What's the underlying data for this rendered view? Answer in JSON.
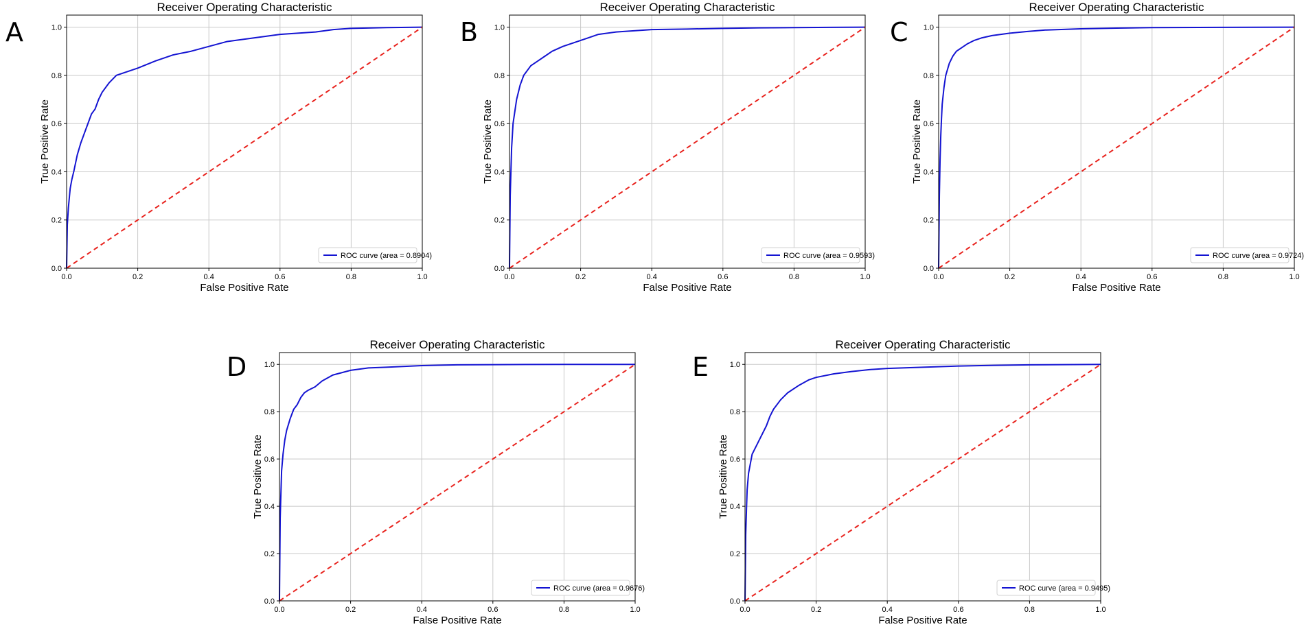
{
  "figure": {
    "panel_letters": [
      "A",
      "B",
      "C",
      "D",
      "E"
    ],
    "colors": {
      "roc_line": "#1414d2",
      "diagonal": "#e8231e",
      "grid": "#c8c8c8",
      "axes": "#000000"
    }
  },
  "chart_data": [
    {
      "type": "line",
      "title": "Receiver Operating Characteristic",
      "xlabel": "False Positive Rate",
      "ylabel": "True Positive Rate",
      "xlim": [
        0,
        1
      ],
      "ylim": [
        0,
        1.05
      ],
      "xticks": [
        "0.0",
        "0.2",
        "0.4",
        "0.6",
        "0.8",
        "1.0"
      ],
      "yticks": [
        "0.0",
        "0.2",
        "0.4",
        "0.6",
        "0.8",
        "1.0"
      ],
      "grid": true,
      "legend_position": "lower-right",
      "series": [
        {
          "name": "ROC curve (area = 0.8904)",
          "style": "solid",
          "x": [
            0,
            0.002,
            0.005,
            0.01,
            0.015,
            0.02,
            0.03,
            0.04,
            0.05,
            0.06,
            0.07,
            0.08,
            0.09,
            0.1,
            0.12,
            0.14,
            0.16,
            0.18,
            0.2,
            0.25,
            0.3,
            0.35,
            0.4,
            0.45,
            0.5,
            0.55,
            0.6,
            0.65,
            0.7,
            0.75,
            0.8,
            0.9,
            1.0
          ],
          "y": [
            0,
            0.18,
            0.25,
            0.33,
            0.37,
            0.4,
            0.47,
            0.52,
            0.56,
            0.6,
            0.64,
            0.66,
            0.7,
            0.73,
            0.77,
            0.8,
            0.81,
            0.82,
            0.83,
            0.86,
            0.885,
            0.9,
            0.92,
            0.94,
            0.95,
            0.96,
            0.97,
            0.975,
            0.98,
            0.99,
            0.995,
            0.998,
            1.0
          ]
        },
        {
          "style": "dashed",
          "x": [
            0,
            1
          ],
          "y": [
            0,
            1
          ]
        }
      ]
    },
    {
      "type": "line",
      "title": "Receiver Operating Characteristic",
      "xlabel": "False Positive Rate",
      "ylabel": "True Positive Rate",
      "xlim": [
        0,
        1
      ],
      "ylim": [
        0,
        1.05
      ],
      "xticks": [
        "0.0",
        "0.2",
        "0.4",
        "0.6",
        "0.8",
        "1.0"
      ],
      "yticks": [
        "0.0",
        "0.2",
        "0.4",
        "0.6",
        "0.8",
        "1.0"
      ],
      "grid": true,
      "legend_position": "lower-right",
      "series": [
        {
          "name": "ROC curve (area = 0.9593)",
          "style": "solid",
          "x": [
            0,
            0.002,
            0.004,
            0.006,
            0.01,
            0.015,
            0.02,
            0.03,
            0.04,
            0.05,
            0.06,
            0.08,
            0.1,
            0.12,
            0.15,
            0.18,
            0.2,
            0.22,
            0.25,
            0.3,
            0.35,
            0.4,
            0.5,
            0.6,
            0.7,
            0.8,
            0.9,
            1.0
          ],
          "y": [
            0,
            0.3,
            0.4,
            0.5,
            0.6,
            0.65,
            0.7,
            0.76,
            0.8,
            0.82,
            0.84,
            0.86,
            0.88,
            0.9,
            0.92,
            0.935,
            0.945,
            0.955,
            0.97,
            0.98,
            0.985,
            0.99,
            0.992,
            0.995,
            0.997,
            0.998,
            0.999,
            1.0
          ]
        },
        {
          "style": "dashed",
          "x": [
            0,
            1
          ],
          "y": [
            0,
            1
          ]
        }
      ]
    },
    {
      "type": "line",
      "title": "Receiver Operating Characteristic",
      "xlabel": "False Positive Rate",
      "ylabel": "True Positive Rate",
      "xlim": [
        0,
        1
      ],
      "ylim": [
        0,
        1.05
      ],
      "xticks": [
        "0.0",
        "0.2",
        "0.4",
        "0.6",
        "0.8",
        "1.0"
      ],
      "yticks": [
        "0.0",
        "0.2",
        "0.4",
        "0.6",
        "0.8",
        "1.0"
      ],
      "grid": true,
      "legend_position": "lower-right",
      "series": [
        {
          "name": "ROC curve (area = 0.9724)",
          "style": "solid",
          "x": [
            0,
            0.002,
            0.004,
            0.006,
            0.008,
            0.01,
            0.015,
            0.02,
            0.03,
            0.04,
            0.05,
            0.06,
            0.08,
            0.1,
            0.12,
            0.15,
            0.2,
            0.25,
            0.3,
            0.4,
            0.5,
            0.6,
            0.8,
            1.0
          ],
          "y": [
            0,
            0.3,
            0.45,
            0.55,
            0.62,
            0.68,
            0.75,
            0.8,
            0.85,
            0.88,
            0.9,
            0.91,
            0.93,
            0.945,
            0.955,
            0.965,
            0.975,
            0.982,
            0.988,
            0.993,
            0.996,
            0.998,
            0.999,
            1.0
          ]
        },
        {
          "style": "dashed",
          "x": [
            0,
            1
          ],
          "y": [
            0,
            1
          ]
        }
      ]
    },
    {
      "type": "line",
      "title": "Receiver Operating Characteristic",
      "xlabel": "False Positive Rate",
      "ylabel": "True Positive Rate",
      "xlim": [
        0,
        1
      ],
      "ylim": [
        0,
        1.05
      ],
      "xticks": [
        "0.0",
        "0.2",
        "0.4",
        "0.6",
        "0.8",
        "1.0"
      ],
      "yticks": [
        "0.0",
        "0.2",
        "0.4",
        "0.6",
        "0.8",
        "1.0"
      ],
      "grid": true,
      "legend_position": "lower-right",
      "series": [
        {
          "name": "ROC curve (area = 0.9676)",
          "style": "solid",
          "x": [
            0,
            0.002,
            0.004,
            0.006,
            0.01,
            0.015,
            0.02,
            0.03,
            0.04,
            0.05,
            0.06,
            0.07,
            0.08,
            0.1,
            0.12,
            0.15,
            0.2,
            0.25,
            0.3,
            0.4,
            0.5,
            0.6,
            0.8,
            1.0
          ],
          "y": [
            0,
            0.35,
            0.45,
            0.55,
            0.62,
            0.68,
            0.72,
            0.77,
            0.81,
            0.83,
            0.86,
            0.88,
            0.89,
            0.905,
            0.93,
            0.955,
            0.975,
            0.985,
            0.988,
            0.995,
            0.998,
            0.999,
            1.0,
            1.0
          ]
        },
        {
          "style": "dashed",
          "x": [
            0,
            1
          ],
          "y": [
            0,
            1
          ]
        }
      ]
    },
    {
      "type": "line",
      "title": "Receiver Operating Characteristic",
      "xlabel": "False Positive Rate",
      "ylabel": "True Positive Rate",
      "xlim": [
        0,
        1
      ],
      "ylim": [
        0,
        1.05
      ],
      "xticks": [
        "0.0",
        "0.2",
        "0.4",
        "0.6",
        "0.8",
        "1.0"
      ],
      "yticks": [
        "0.0",
        "0.2",
        "0.4",
        "0.6",
        "0.8",
        "1.0"
      ],
      "grid": true,
      "legend_position": "lower-right",
      "series": [
        {
          "name": "ROC curve (area = 0.9495)",
          "style": "solid",
          "x": [
            0,
            0.002,
            0.004,
            0.006,
            0.01,
            0.015,
            0.02,
            0.03,
            0.04,
            0.05,
            0.06,
            0.07,
            0.08,
            0.1,
            0.12,
            0.15,
            0.18,
            0.2,
            0.25,
            0.3,
            0.35,
            0.4,
            0.5,
            0.6,
            0.7,
            0.8,
            1.0
          ],
          "y": [
            0,
            0.28,
            0.38,
            0.47,
            0.54,
            0.58,
            0.62,
            0.65,
            0.68,
            0.71,
            0.74,
            0.78,
            0.81,
            0.85,
            0.88,
            0.91,
            0.935,
            0.945,
            0.96,
            0.97,
            0.978,
            0.983,
            0.988,
            0.993,
            0.996,
            0.998,
            1.0
          ]
        },
        {
          "style": "dashed",
          "x": [
            0,
            1
          ],
          "y": [
            0,
            1
          ]
        }
      ]
    }
  ]
}
